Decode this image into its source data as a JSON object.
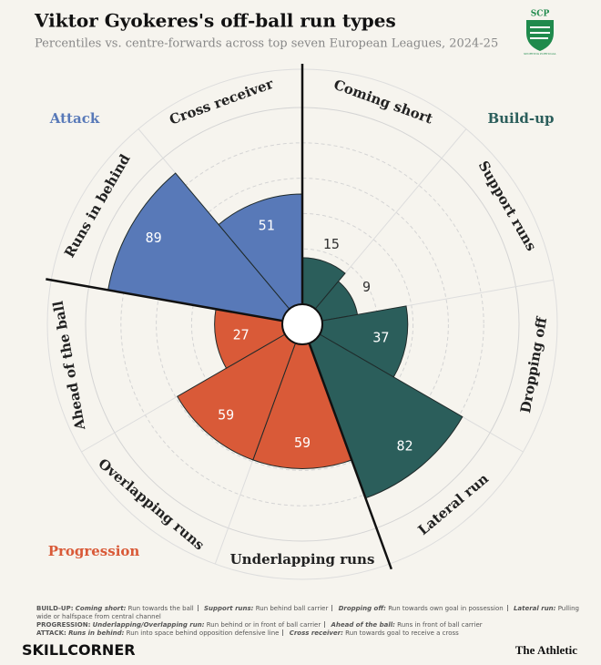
{
  "chart_data": {
    "type": "polar_bar",
    "title": "Viktor Gyokeres's off-ball run types",
    "subtitle": "Percentiles vs. centre-forwards across top seven European Leagues, 2024-25",
    "ylim": [
      0,
      100
    ],
    "yticks": [
      20,
      40,
      60,
      80,
      100
    ],
    "series": [
      {
        "name": "Build-up",
        "color": "#2b5e5b",
        "categories": [
          "Coming short",
          "Support runs",
          "Dropping off",
          "Lateral run"
        ],
        "values": [
          15,
          9,
          37,
          82
        ]
      },
      {
        "name": "Progression",
        "color": "#d95a38",
        "categories": [
          "Underlapping runs",
          "Overlapping runs",
          "Ahead of the ball"
        ],
        "values": [
          59,
          59,
          27
        ]
      },
      {
        "name": "Attack",
        "color": "#5879b8",
        "categories": [
          "Runs in behind",
          "Cross receiver"
        ],
        "values": [
          89,
          51
        ]
      }
    ]
  },
  "logo": {
    "top": "SCP",
    "ring": "SPORTING PORTUGAL"
  },
  "footer": {
    "groups": [
      {
        "group": "BUILD-UP:",
        "items": [
          {
            "term": "Coming short:",
            "desc": "Run towards the ball"
          },
          {
            "term": "Support runs:",
            "desc": "Run behind ball carrier"
          },
          {
            "term": "Dropping off:",
            "desc": "Run towards own goal in possession"
          },
          {
            "term": "Lateral run:",
            "desc": "Pulling wide or halfspace from central channel"
          }
        ]
      },
      {
        "group": "PROGRESSION:",
        "items": [
          {
            "term": "Underlapping/Overlapping run:",
            "desc": "Run behind or in front of ball carrier"
          },
          {
            "term": "Ahead of the ball:",
            "desc": "Runs in front of ball carrier"
          }
        ]
      },
      {
        "group": "ATTACK:",
        "items": [
          {
            "term": "Runs in behind:",
            "desc": "Run into space behind opposition defensive line"
          },
          {
            "term": "Cross receiver:",
            "desc": "Run towards goal to receive a cross"
          }
        ]
      }
    ]
  },
  "brand": "SKILLCORNER",
  "publisher": "The Athletic"
}
